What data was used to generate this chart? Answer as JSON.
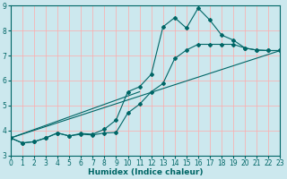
{
  "xlabel": "Humidex (Indice chaleur)",
  "bg_color": "#cce8ee",
  "grid_color": "#ffaaaa",
  "line_color": "#006666",
  "xlim": [
    0,
    23
  ],
  "ylim": [
    3,
    9
  ],
  "xticks": [
    0,
    1,
    2,
    3,
    4,
    5,
    6,
    7,
    8,
    9,
    10,
    11,
    12,
    13,
    14,
    15,
    16,
    17,
    18,
    19,
    20,
    21,
    22,
    23
  ],
  "yticks": [
    3,
    4,
    5,
    6,
    7,
    8,
    9
  ],
  "line1_x": [
    0,
    1,
    2,
    3,
    4,
    5,
    6,
    7,
    8,
    9,
    10,
    11,
    12,
    13,
    14,
    15,
    16,
    17,
    18,
    19,
    20,
    21,
    22,
    23
  ],
  "line1_y": [
    3.7,
    3.5,
    3.55,
    3.7,
    3.9,
    3.78,
    3.88,
    3.85,
    4.05,
    4.42,
    5.55,
    5.75,
    6.25,
    8.15,
    8.52,
    8.1,
    8.9,
    8.42,
    7.82,
    7.62,
    7.3,
    7.22,
    7.2,
    7.2
  ],
  "line2_x": [
    0,
    1,
    2,
    3,
    4,
    5,
    6,
    7,
    8,
    9,
    10,
    11,
    12,
    13,
    14,
    15,
    16,
    17,
    18,
    19,
    20,
    21,
    22,
    23
  ],
  "line2_y": [
    3.7,
    3.5,
    3.55,
    3.7,
    3.9,
    3.78,
    3.85,
    3.82,
    3.9,
    3.92,
    4.7,
    5.05,
    5.55,
    5.88,
    6.88,
    7.22,
    7.45,
    7.45,
    7.45,
    7.45,
    7.3,
    7.22,
    7.2,
    7.2
  ],
  "line3_x": [
    0,
    23
  ],
  "line3_y": [
    3.7,
    7.2
  ],
  "line4_x": [
    0,
    11
  ],
  "line4_y": [
    3.7,
    5.55
  ]
}
